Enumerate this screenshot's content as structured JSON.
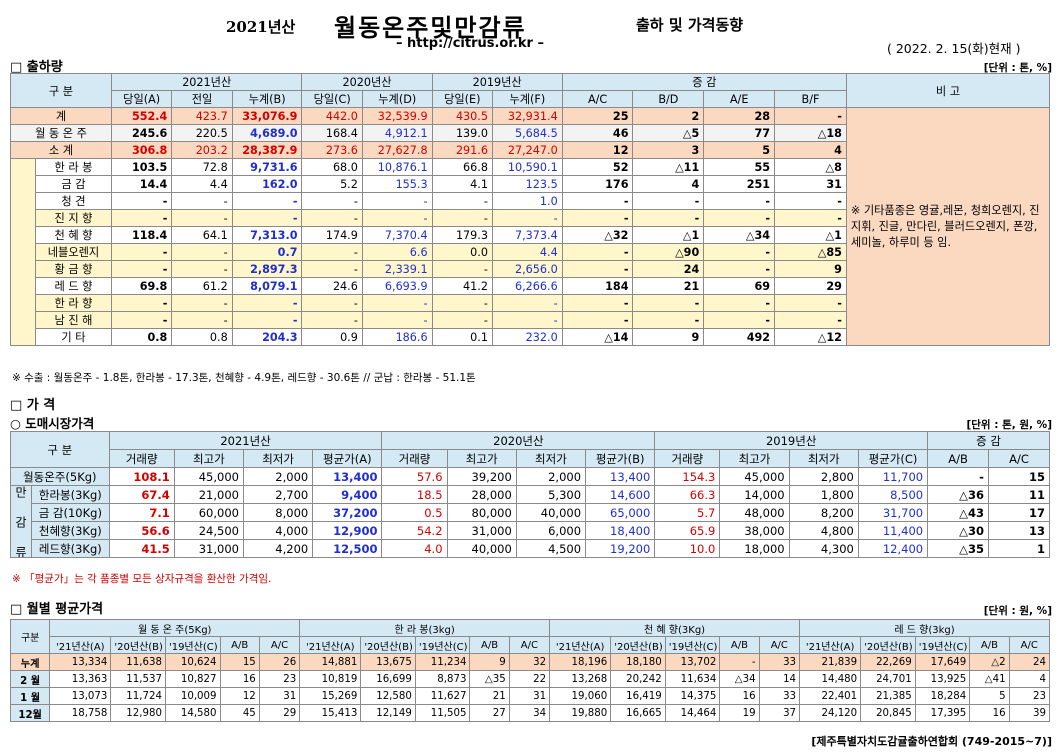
{
  "header": {
    "year": "2021년산",
    "main_title": "월동온주및만감류",
    "sub_title": "출하 및 가격동향",
    "url": "– http://citrus.or.kr –",
    "date": "( 2022. 2. 15(화)현재 )"
  },
  "section1": {
    "title": "□ 출하량",
    "unit": "[단위 : 톤, %]",
    "head_gubun": "구    분",
    "head_groups": [
      "2021년산",
      "2020년산",
      "2019년산",
      "증    감",
      "비 고"
    ],
    "sub_heads": [
      "당일(A)",
      "전일",
      "누계(B)",
      "당일(C)",
      "누계(D)",
      "당일(E)",
      "누계(F)",
      "A/C",
      "B/D",
      "A/E",
      "B/F"
    ],
    "side_label": "만 감 류",
    "remark": "※ 기타품종은 영귤,레몬, 청희오렌지, 진지휘, 진글, 만다린, 블러드오렌지, 폰깡,세미놀, 하루미 등 임.",
    "rows": [
      {
        "name": "계",
        "v": [
          "552.4",
          "423.7",
          "33,076.9",
          "442.0",
          "32,539.9",
          "430.5",
          "32,931.4",
          "25",
          "2",
          "28",
          "-"
        ]
      },
      {
        "name": "월 동 온 주",
        "v": [
          "245.6",
          "220.5",
          "4,689.0",
          "168.4",
          "4,912.1",
          "139.0",
          "5,684.5",
          "46",
          "△5",
          "77",
          "△18"
        ]
      },
      {
        "name": "소    계",
        "v": [
          "306.8",
          "203.2",
          "28,387.9",
          "273.6",
          "27,627.8",
          "291.6",
          "27,247.0",
          "12",
          "3",
          "5",
          "4"
        ]
      },
      {
        "name": "한 라 봉",
        "v": [
          "103.5",
          "72.8",
          "9,731.6",
          "68.0",
          "10,876.1",
          "66.8",
          "10,590.1",
          "52",
          "△11",
          "55",
          "△8"
        ]
      },
      {
        "name": "금    감",
        "v": [
          "14.4",
          "4.4",
          "162.0",
          "5.2",
          "155.3",
          "4.1",
          "123.5",
          "176",
          "4",
          "251",
          "31"
        ]
      },
      {
        "name": "청    견",
        "v": [
          "-",
          "-",
          "-",
          "-",
          "-",
          "-",
          "1.0",
          "-",
          "-",
          "-",
          "-"
        ]
      },
      {
        "name": "진 지 향",
        "v": [
          "-",
          "-",
          "-",
          "-",
          "-",
          "-",
          "-",
          "-",
          "-",
          "-",
          "-"
        ]
      },
      {
        "name": "천 혜 향",
        "v": [
          "118.4",
          "64.1",
          "7,313.0",
          "174.9",
          "7,370.4",
          "179.3",
          "7,373.4",
          "△32",
          "△1",
          "△34",
          "△1"
        ]
      },
      {
        "name": "네블오렌지",
        "v": [
          "-",
          "-",
          "0.7",
          "-",
          "6.6",
          "0.0",
          "4.4",
          "-",
          "△90",
          "-",
          "△85"
        ]
      },
      {
        "name": "황 금 향",
        "v": [
          "-",
          "-",
          "2,897.3",
          "-",
          "2,339.1",
          "-",
          "2,656.0",
          "-",
          "24",
          "-",
          "9"
        ]
      },
      {
        "name": "레 드 향",
        "v": [
          "69.8",
          "61.2",
          "8,079.1",
          "24.6",
          "6,693.9",
          "41.2",
          "6,266.6",
          "184",
          "21",
          "69",
          "29"
        ]
      },
      {
        "name": "한 라 향",
        "v": [
          "-",
          "-",
          "-",
          "-",
          "-",
          "-",
          "-",
          "-",
          "-",
          "-",
          "-"
        ]
      },
      {
        "name": "남 진 해",
        "v": [
          "-",
          "-",
          "-",
          "-",
          "-",
          "-",
          "-",
          "-",
          "-",
          "-",
          "-"
        ]
      },
      {
        "name": "기    타",
        "v": [
          "0.8",
          "0.8",
          "204.3",
          "0.9",
          "186.6",
          "0.1",
          "232.0",
          "△14",
          "9",
          "492",
          "△12"
        ]
      }
    ],
    "note": "※ 수출 : 월동온주 - 1.8톤, 한라봉 - 17.3톤, 천혜향 - 4.9톤, 레드향 - 30.6톤 // 군납 : 한라봉 - 51.1톤"
  },
  "section2": {
    "title": "□ 가     격",
    "subtitle": "○ 도매시장가격",
    "unit": "[단위 : 톤, 원, %]",
    "head_gubun": "구    분",
    "head_groups": [
      "2021년산",
      "2020년산",
      "2019년산",
      "증    감"
    ],
    "sub_heads": [
      "거래량",
      "최고가",
      "최저가",
      "평균가(A)",
      "거래량",
      "최고가",
      "최저가",
      "평균가(B)",
      "거래량",
      "최고가",
      "최저가",
      "평균가(C)",
      "A/B",
      "A/C"
    ],
    "side_label": "만 감 류",
    "rows": [
      {
        "name": "월동온주(5Kg)",
        "v": [
          "108.1",
          "45,000",
          "2,000",
          "13,400",
          "57.6",
          "39,200",
          "2,000",
          "13,400",
          "154.3",
          "45,000",
          "2,800",
          "11,700",
          "-",
          "15"
        ]
      },
      {
        "name": "한라봉(3Kg)",
        "v": [
          "67.4",
          "21,000",
          "2,700",
          "9,400",
          "18.5",
          "28,000",
          "5,300",
          "14,600",
          "66.3",
          "14,000",
          "1,800",
          "8,500",
          "△36",
          "11"
        ]
      },
      {
        "name": "금  감(10Kg)",
        "v": [
          "7.1",
          "60,000",
          "8,000",
          "37,200",
          "0.5",
          "80,000",
          "40,000",
          "65,000",
          "5.7",
          "48,000",
          "8,200",
          "31,700",
          "△43",
          "17"
        ]
      },
      {
        "name": "천혜향(3Kg)",
        "v": [
          "56.6",
          "24,500",
          "4,000",
          "12,900",
          "54.2",
          "31,000",
          "6,000",
          "18,400",
          "65.9",
          "38,000",
          "4,800",
          "11,400",
          "△30",
          "13"
        ]
      },
      {
        "name": "레드향(3Kg)",
        "v": [
          "41.5",
          "31,000",
          "4,200",
          "12,500",
          "4.0",
          "40,000",
          "4,500",
          "19,200",
          "10.0",
          "18,000",
          "4,300",
          "12,400",
          "△35",
          "1"
        ]
      }
    ],
    "note": "※ 「평균가」는 각 품종별 모든 상자규격을 환산한 가격임."
  },
  "section3": {
    "title": "□ 월별 평균가격",
    "unit": "[단위 : 원, %]",
    "head_gubun": "구분",
    "head_groups": [
      "월 동 온 주(5Kg)",
      "한 라 봉(3kg)",
      "천 혜 향(3Kg)",
      "레 드 향(3kg)"
    ],
    "sub_heads": [
      "'21년산(A)",
      "'20년산(B)",
      "'19년산(C)",
      "A/B",
      "A/C"
    ],
    "rows": [
      {
        "name": "누계",
        "v": [
          "13,334",
          "11,638",
          "10,624",
          "15",
          "26",
          "14,881",
          "13,675",
          "11,234",
          "9",
          "32",
          "18,196",
          "18,180",
          "13,702",
          "-",
          "33",
          "21,839",
          "22,269",
          "17,649",
          "△2",
          "24"
        ]
      },
      {
        "name": "2 월",
        "v": [
          "13,363",
          "11,537",
          "10,827",
          "16",
          "23",
          "10,819",
          "16,699",
          "8,873",
          "△35",
          "22",
          "13,268",
          "20,242",
          "11,634",
          "△34",
          "14",
          "14,480",
          "24,701",
          "13,925",
          "△41",
          "4"
        ]
      },
      {
        "name": "1 월",
        "v": [
          "13,073",
          "11,724",
          "10,009",
          "12",
          "31",
          "15,269",
          "12,580",
          "11,627",
          "21",
          "31",
          "19,060",
          "16,419",
          "14,375",
          "16",
          "33",
          "22,401",
          "21,385",
          "18,284",
          "5",
          "23"
        ]
      },
      {
        "name": "12월",
        "v": [
          "18,758",
          "12,980",
          "14,580",
          "45",
          "29",
          "15,413",
          "12,149",
          "11,505",
          "27",
          "34",
          "19,880",
          "16,665",
          "14,464",
          "19",
          "37",
          "24,120",
          "20,845",
          "17,395",
          "16",
          "39"
        ]
      }
    ]
  },
  "footer": "[제주특별자치도감귤출하연합회 (749-2015~7)]"
}
